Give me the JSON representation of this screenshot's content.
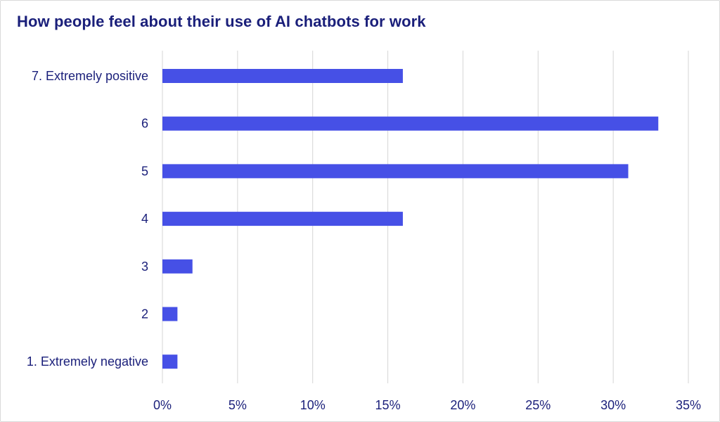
{
  "chart_data": {
    "type": "bar",
    "orientation": "horizontal",
    "title": "How people feel about their use of AI chatbots for work",
    "categories": [
      "7. Extremely positive",
      "6",
      "5",
      "4",
      "3",
      "2",
      "1. Extremely negative"
    ],
    "values": [
      16,
      33,
      31,
      16,
      2,
      1,
      1
    ],
    "unit": "%",
    "xlim": [
      0,
      35
    ],
    "xticks": [
      0,
      5,
      10,
      15,
      20,
      25,
      30,
      35
    ],
    "xtick_labels": [
      "0%",
      "5%",
      "10%",
      "15%",
      "20%",
      "25%",
      "30%",
      "35%"
    ],
    "xlabel": "",
    "ylabel": "",
    "grid": "vertical",
    "legend": "none",
    "bar_color": "#4650e6",
    "text_color": "#1a1f7a"
  }
}
